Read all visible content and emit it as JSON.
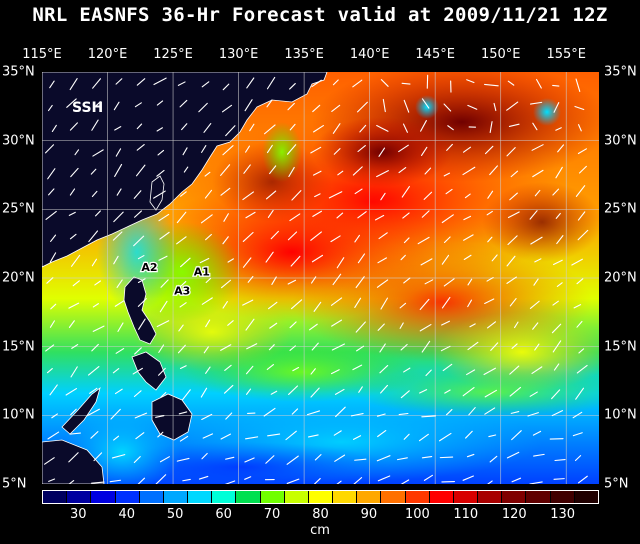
{
  "title": "NRL EASNFS  36-Hr Forecast valid at 2009/11/21 12Z",
  "map_label": "SSH",
  "lon_labels": [
    "115°E",
    "120°E",
    "125°E",
    "130°E",
    "135°E",
    "140°E",
    "145°E",
    "150°E",
    "155°E"
  ],
  "lat_labels": [
    "35°N",
    "30°N",
    "25°N",
    "20°N",
    "15°N",
    "10°N",
    "5°N"
  ],
  "markers": [
    {
      "label": "A2",
      "lon": 123.2,
      "lat": 20.5
    },
    {
      "label": "A1",
      "lon": 127.2,
      "lat": 20.2
    },
    {
      "label": "A3",
      "lon": 125.7,
      "lat": 18.8
    }
  ],
  "colorbar": {
    "ticks": [
      "30",
      "40",
      "50",
      "60",
      "70",
      "80",
      "90",
      "100",
      "110",
      "120",
      "130"
    ],
    "unit": "cm",
    "colors": [
      "#000060",
      "#0000a0",
      "#0000e0",
      "#0030ff",
      "#0070ff",
      "#00a8ff",
      "#00d8ff",
      "#00ffd8",
      "#00e050",
      "#70ff00",
      "#c8ff00",
      "#ffff00",
      "#ffd800",
      "#ffa800",
      "#ff7000",
      "#ff3800",
      "#ff0000",
      "#d80000",
      "#a80000",
      "#800000",
      "#600000",
      "#400000",
      "#200000"
    ]
  }
}
